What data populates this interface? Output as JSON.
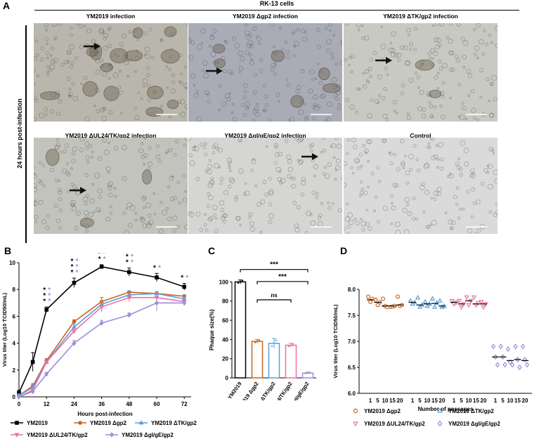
{
  "panel_a": {
    "letter": "A",
    "cell_line": "RK-13 cells",
    "side_label": "24 hours post-infection",
    "images": [
      {
        "title": "YM2019 infection",
        "tone": "#b9b7ad"
      },
      {
        "title": "YM2019 Δgp2 infection",
        "tone": "#a9acb6"
      },
      {
        "title": "YM2019 ΔTK/gp2 infection",
        "tone": "#c9c9c4"
      },
      {
        "title": "YM2019 ΔUL24/TK/gp2 infection",
        "tone": "#c3c3bd"
      },
      {
        "title": "YM2019 ΔgI/gE/gp2 infection",
        "tone": "#d5d5d3"
      },
      {
        "title": "Control",
        "tone": "#dadada"
      }
    ]
  },
  "panel_b": {
    "letter": "B"
  },
  "panel_c": {
    "letter": "C"
  },
  "panel_d": {
    "letter": "D"
  },
  "colors": {
    "YM2019": "#000000",
    "gp2": "#c8641e",
    "TK": "#5a9fdc",
    "UL24": "#ef6ea3",
    "gIgE": "#9b8fd9"
  },
  "chart_data": [
    {
      "type": "line",
      "title": "",
      "xlabel": "Hours post-infection",
      "ylabel": "Virus titer (Log10 TCID50/mL)",
      "x": [
        0,
        6,
        12,
        24,
        36,
        48,
        60,
        72
      ],
      "xlim": [
        0,
        75
      ],
      "ylim": [
        0,
        10
      ],
      "xticks": [
        0,
        12,
        24,
        36,
        48,
        60,
        72
      ],
      "yticks": [
        0,
        2,
        4,
        6,
        8,
        10
      ],
      "legend_position": "bottom",
      "series": [
        {
          "name": "YM2019",
          "key": "YM2019",
          "marker": "square",
          "values": [
            0.3,
            2.6,
            6.5,
            8.5,
            9.7,
            9.3,
            8.9,
            8.2
          ],
          "err": [
            0.2,
            0.7,
            0.2,
            0.35,
            0.15,
            0.3,
            0.3,
            0.25
          ]
        },
        {
          "name": "YM2019 Δgp2",
          "key": "gp2",
          "marker": "circle",
          "values": [
            0.1,
            0.8,
            2.7,
            5.6,
            7.1,
            7.8,
            7.7,
            7.5
          ],
          "err": [
            0.1,
            0.2,
            0.15,
            0.15,
            0.3,
            0.1,
            0.1,
            0.1
          ]
        },
        {
          "name": "YM2019 ΔTK/gp2",
          "key": "TK",
          "marker": "triangle",
          "values": [
            0.1,
            0.7,
            2.6,
            5.2,
            6.9,
            7.6,
            7.7,
            7.3
          ],
          "err": [
            0.1,
            0.2,
            0.1,
            0.2,
            0.5,
            0.3,
            0.15,
            0.2
          ]
        },
        {
          "name": "YM2019 ΔUL24/TK/gp2",
          "key": "UL24",
          "marker": "triangle-down",
          "values": [
            0.0,
            0.5,
            2.6,
            4.9,
            6.7,
            7.4,
            7.4,
            7.1
          ],
          "err": [
            0.1,
            0.2,
            0.1,
            0.2,
            0.4,
            0.3,
            0.4,
            0.2
          ]
        },
        {
          "name": "YM2019 ΔgI/gE/gp2",
          "key": "gIgE",
          "marker": "diamond",
          "values": [
            0.0,
            0.4,
            1.7,
            4.0,
            5.5,
            6.1,
            7.0,
            7.0
          ],
          "err": [
            0.1,
            0.1,
            0.1,
            0.2,
            0.2,
            0.15,
            0.6,
            0.2
          ]
        }
      ],
      "significance_marks": [
        {
          "x": 12,
          "count": 3
        },
        {
          "x": 24,
          "count": 3
        },
        {
          "x": 36,
          "count": 3
        },
        {
          "x": 48,
          "count": 3
        },
        {
          "x": 60,
          "count": 1
        },
        {
          "x": 72,
          "count": 1
        }
      ]
    },
    {
      "type": "bar",
      "title": "",
      "ylabel": "Phaque size(%)",
      "categories": [
        "YM2019",
        "YM2019 Δgp2",
        "YM2019 ΔTK/gp2",
        "YM2019 ΔUL24/TK/gp2",
        "YM2019 ΔgI/gE/gp2"
      ],
      "keys": [
        "YM2019",
        "gp2",
        "TK",
        "UL24",
        "gIgE"
      ],
      "values": [
        100,
        38,
        36,
        34,
        5
      ],
      "err": [
        2,
        2,
        5,
        2,
        1
      ],
      "ylim": [
        0,
        120
      ],
      "yticks": [
        0,
        20,
        40,
        60,
        80,
        100
      ],
      "brackets": [
        {
          "from": 0,
          "to": 4,
          "label": "***"
        },
        {
          "from": 1,
          "to": 4,
          "label": "***"
        },
        {
          "from": 1,
          "to": 3,
          "label": "ns"
        }
      ]
    },
    {
      "type": "scatter",
      "title": "",
      "xlabel": "Number of passages",
      "ylabel": "Virus titer (Log10 TCID50/mL)",
      "ylim": [
        6.0,
        8.0
      ],
      "yticks": [
        6.0,
        6.5,
        7.0,
        7.5,
        8.0
      ],
      "passage_labels": [
        "1",
        "5",
        "10",
        "15",
        "20"
      ],
      "legend_position": "bottom",
      "groups": [
        {
          "name": "YM2019 Δgp2",
          "key": "gp2",
          "marker": "circle",
          "means": [
            7.8,
            7.75,
            7.68,
            7.68,
            7.7
          ],
          "points": [
            [
              7.86,
              7.76,
              7.82
            ],
            [
              7.8,
              7.7,
              7.75
            ],
            [
              7.82,
              7.68,
              7.66
            ],
            [
              7.66,
              7.67,
              7.68
            ],
            [
              7.86,
              7.68,
              7.7
            ]
          ]
        },
        {
          "name": "YM2019 ΔTK/gp2",
          "key": "TK",
          "marker": "triangle",
          "means": [
            7.75,
            7.7,
            7.72,
            7.73,
            7.68
          ],
          "points": [
            [
              7.78,
              7.72,
              7.75
            ],
            [
              7.84,
              7.66,
              7.7
            ],
            [
              7.76,
              7.68,
              7.72
            ],
            [
              7.82,
              7.66,
              7.74
            ],
            [
              7.78,
              7.66,
              7.68
            ]
          ]
        },
        {
          "name": "YM2019 ΔUL24/TK/gp2",
          "key": "UL24",
          "marker": "triangle-down",
          "means": [
            7.75,
            7.72,
            7.78,
            7.72,
            7.72
          ],
          "points": [
            [
              7.78,
              7.72,
              7.75
            ],
            [
              7.78,
              7.66,
              7.72
            ],
            [
              7.85,
              7.7,
              7.78
            ],
            [
              7.85,
              7.7,
              7.74
            ],
            [
              7.76,
              7.66,
              7.72
            ]
          ]
        },
        {
          "name": "YM2019 ΔgI/gE/gp2",
          "key": "gIgE",
          "marker": "diamond",
          "means": [
            6.7,
            6.7,
            6.63,
            6.65,
            6.63
          ],
          "points": [
            [
              6.9,
              6.7,
              6.55
            ],
            [
              6.9,
              6.7,
              6.55
            ],
            [
              6.85,
              6.6,
              6.55
            ],
            [
              6.9,
              6.65,
              6.5
            ],
            [
              6.9,
              6.65,
              6.55
            ]
          ]
        }
      ]
    }
  ]
}
